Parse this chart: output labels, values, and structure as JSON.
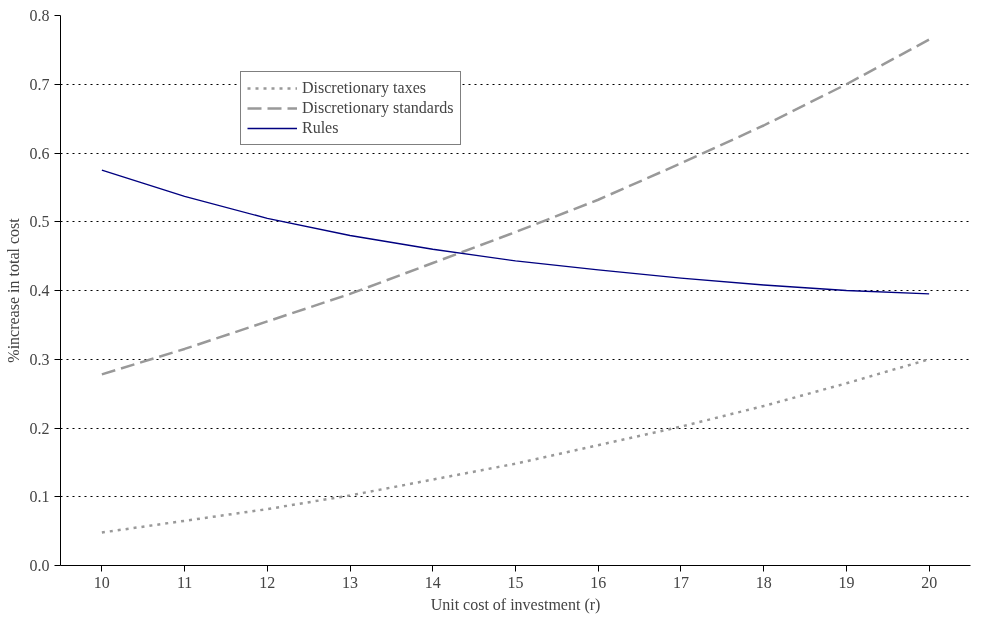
{
  "chart_data": {
    "type": "line",
    "xlabel": "Unit cost of investment (r)",
    "ylabel": "%increase in total cost",
    "categories": [
      "10",
      "11",
      "12",
      "13",
      "14",
      "15",
      "16",
      "17",
      "18",
      "19",
      "20"
    ],
    "series": [
      {
        "name": "Discretionary taxes",
        "color": "#999999",
        "line_style": "dotted",
        "values": [
          0.048,
          0.065,
          0.082,
          0.102,
          0.125,
          0.148,
          0.175,
          0.202,
          0.232,
          0.265,
          0.3
        ]
      },
      {
        "name": "Discretionary standards",
        "color": "#999999",
        "line_style": "dashed",
        "values": [
          0.278,
          0.315,
          0.355,
          0.395,
          0.44,
          0.485,
          0.532,
          0.585,
          0.64,
          0.7,
          0.765
        ]
      },
      {
        "name": "Rules",
        "color": "#000080",
        "line_style": "solid",
        "values": [
          0.575,
          0.537,
          0.505,
          0.48,
          0.46,
          0.443,
          0.43,
          0.418,
          0.408,
          0.4,
          0.395
        ]
      }
    ],
    "ylim": [
      0,
      0.8
    ],
    "yticks": [
      {
        "value": 0,
        "label": "0.0"
      },
      {
        "value": 0.1,
        "label": "0.1"
      },
      {
        "value": 0.2,
        "label": "0.2"
      },
      {
        "value": 0.3,
        "label": "0.3"
      },
      {
        "value": 0.4,
        "label": "0.4"
      },
      {
        "value": 0.5,
        "label": "0.5"
      },
      {
        "value": 0.6,
        "label": "0.6"
      },
      {
        "value": 0.7,
        "label": "0.7"
      },
      {
        "value": 0.8,
        "label": "0.8"
      }
    ],
    "grid": "y",
    "legend": "top left",
    "marker": "none"
  }
}
